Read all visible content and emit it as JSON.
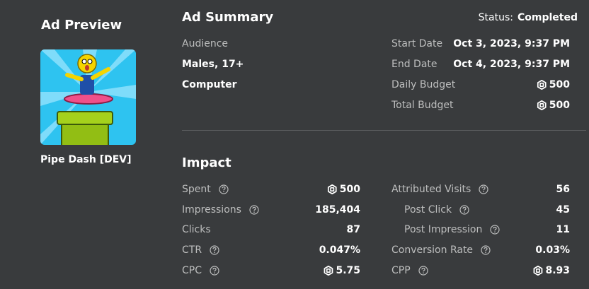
{
  "preview": {
    "title": "Ad Preview",
    "name": "Pipe Dash [DEV]"
  },
  "summary": {
    "title": "Ad Summary",
    "status_label": "Status:",
    "status": "Completed",
    "audience_label": "Audience",
    "audience": [
      "Males, 17+",
      "Computer"
    ],
    "details": [
      {
        "label": "Start Date",
        "value": "Oct 3, 2023, 9:37 PM"
      },
      {
        "label": "End Date",
        "value": "Oct 4, 2023, 9:37 PM"
      },
      {
        "label": "Daily Budget",
        "value": "500",
        "robux": true
      },
      {
        "label": "Total Budget",
        "value": "500",
        "robux": true
      }
    ]
  },
  "impact": {
    "title": "Impact",
    "left": [
      {
        "label": "Spent",
        "value": "500",
        "robux": true
      },
      {
        "label": "Impressions",
        "value": "185,404"
      },
      {
        "label": "Clicks",
        "value": "87",
        "info": false
      },
      {
        "label": "CTR",
        "value": "0.047%"
      },
      {
        "label": "CPC",
        "value": "5.75",
        "robux": true
      }
    ],
    "right": [
      {
        "label": "Attributed Visits",
        "value": "56"
      },
      {
        "label": "Post Click",
        "value": "45",
        "indent": true
      },
      {
        "label": "Post Impression",
        "value": "11",
        "indent": true
      },
      {
        "label": "Conversion Rate",
        "value": "0.03%"
      },
      {
        "label": "CPP",
        "value": "8.93",
        "robux": true
      }
    ]
  }
}
